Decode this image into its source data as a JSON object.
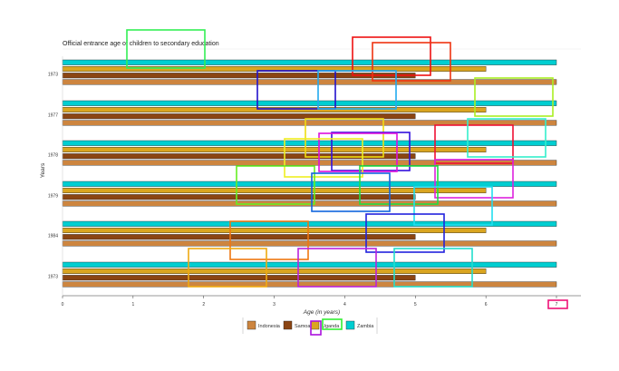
{
  "chart_data": {
    "type": "bar",
    "orientation": "horizontal",
    "title": "Official entrance age of children to secondary education",
    "xlabel": "Age (in years)",
    "ylabel": "Years",
    "xlim": [
      0,
      7
    ],
    "x_ticks": [
      "0",
      "1",
      "2",
      "3",
      "4",
      "5",
      "6",
      "7"
    ],
    "categories": [
      "1973",
      "1977",
      "1978",
      "1979",
      "1984",
      "1973"
    ],
    "series": [
      {
        "name": "Indonesia",
        "color": "#CD853F",
        "values": [
          7,
          7,
          7,
          7,
          7,
          7
        ]
      },
      {
        "name": "Samoa",
        "color": "#8B4513",
        "values": [
          5,
          5,
          5,
          5,
          5,
          5
        ]
      },
      {
        "name": "Uganda",
        "color": "#DAA520",
        "values": [
          6,
          6,
          6,
          6,
          6,
          6
        ]
      },
      {
        "name": "Zambia",
        "color": "#00CED1",
        "values": [
          7,
          7,
          7,
          7,
          7,
          7
        ]
      }
    ],
    "legend_position": "bottom",
    "grid": false
  }
}
